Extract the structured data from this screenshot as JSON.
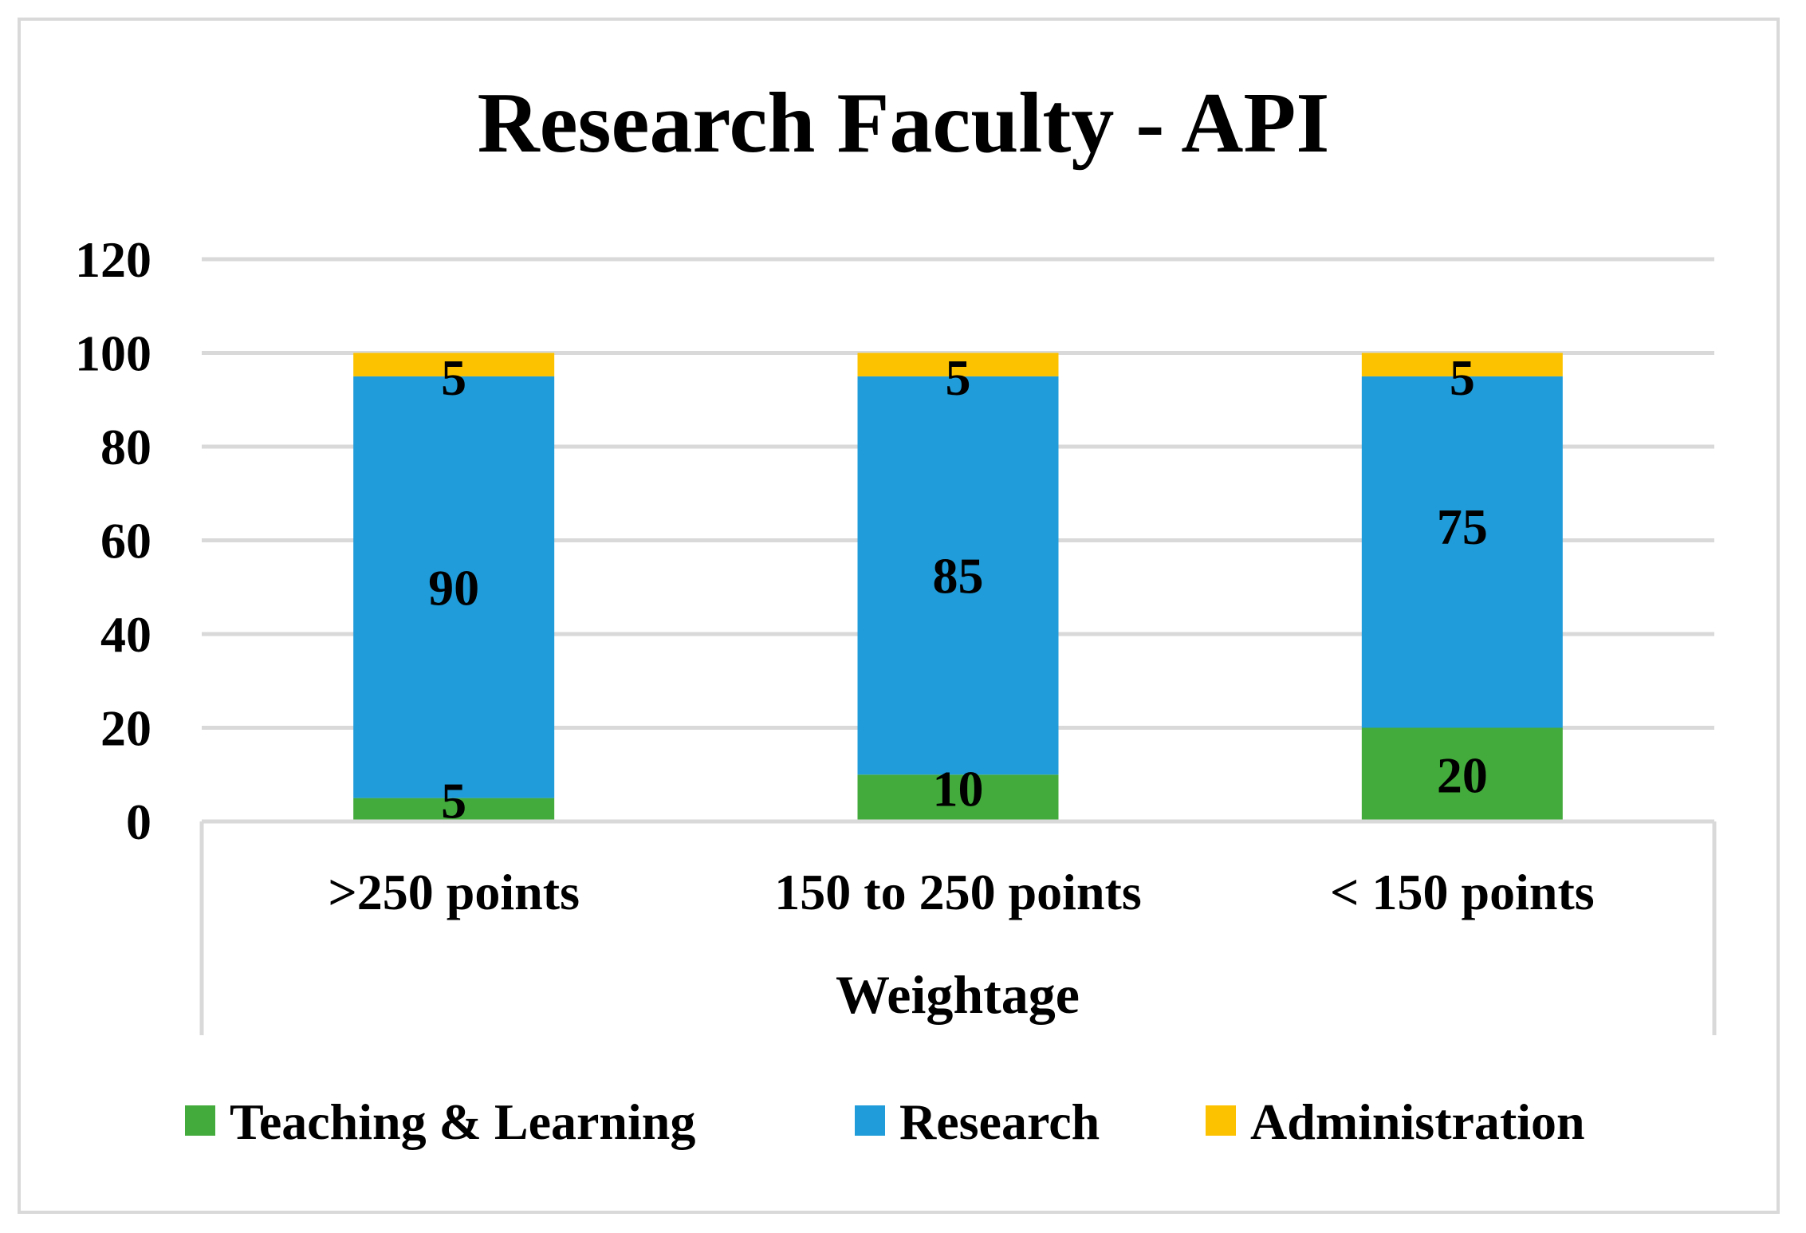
{
  "chart_data": {
    "type": "bar",
    "stacked": true,
    "title": "Research Faculty - API",
    "xlabel": "Weightage",
    "ylabel": "",
    "ylim": [
      0,
      120
    ],
    "yticks": [
      0,
      20,
      40,
      60,
      80,
      100,
      120
    ],
    "grid": true,
    "legend_position": "bottom",
    "categories": [
      ">250 points",
      "150 to 250 points",
      "< 150 points"
    ],
    "series": [
      {
        "name": "Teaching & Learning",
        "color": "#43ab3c",
        "values": [
          5,
          10,
          20
        ]
      },
      {
        "name": "Research",
        "color": "#1f9cd9",
        "values": [
          90,
          85,
          75
        ]
      },
      {
        "name": "Administration",
        "color": "#fcc200",
        "values": [
          5,
          5,
          5
        ]
      }
    ]
  }
}
